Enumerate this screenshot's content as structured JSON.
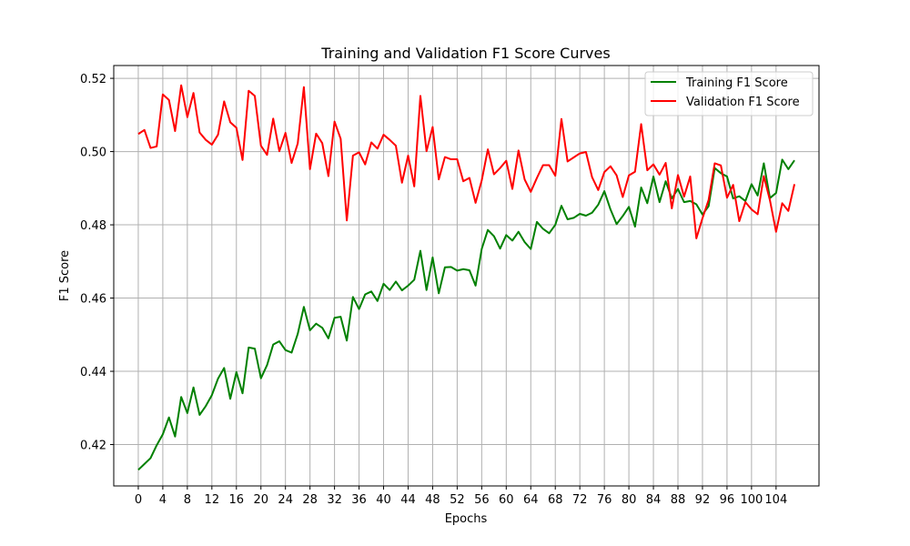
{
  "chart_data": {
    "type": "line",
    "title": "Training and Validation F1 Score Curves",
    "xlabel": "Epochs",
    "ylabel": "F1 Score",
    "xlim": [
      -4,
      111
    ],
    "ylim": [
      0.4087,
      0.5235
    ],
    "xticks": [
      0,
      4,
      8,
      12,
      16,
      20,
      24,
      28,
      32,
      36,
      40,
      44,
      48,
      52,
      56,
      60,
      64,
      68,
      72,
      76,
      80,
      84,
      88,
      92,
      96,
      100,
      104
    ],
    "yticks": [
      0.42,
      0.44,
      0.46,
      0.48,
      0.5,
      0.52
    ],
    "grid": true,
    "legend": "top-right",
    "x": [
      0,
      1,
      2,
      3,
      4,
      5,
      6,
      7,
      8,
      9,
      10,
      11,
      12,
      13,
      14,
      15,
      16,
      17,
      18,
      19,
      20,
      21,
      22,
      23,
      24,
      25,
      26,
      27,
      28,
      29,
      30,
      31,
      32,
      33,
      34,
      35,
      36,
      37,
      38,
      39,
      40,
      41,
      42,
      43,
      44,
      45,
      46,
      47,
      48,
      49,
      50,
      51,
      52,
      53,
      54,
      55,
      56,
      57,
      58,
      59,
      60,
      61,
      62,
      63,
      64,
      65,
      66,
      67,
      68,
      69,
      70,
      71,
      72,
      73,
      74,
      75,
      76,
      77,
      78,
      79,
      80,
      81,
      82,
      83,
      84,
      85,
      86,
      87,
      88,
      89,
      90,
      91,
      92,
      93,
      94,
      95,
      96,
      97,
      98,
      99,
      100,
      101,
      102,
      103,
      104,
      105,
      106,
      107
    ],
    "series": [
      {
        "name": "Training F1 Score",
        "color": "#008000",
        "values": [
          0.4131,
          0.4147,
          0.4163,
          0.4198,
          0.4228,
          0.4274,
          0.4222,
          0.433,
          0.4286,
          0.4356,
          0.4281,
          0.4305,
          0.4335,
          0.438,
          0.4409,
          0.4325,
          0.4398,
          0.434,
          0.4465,
          0.4462,
          0.4381,
          0.4417,
          0.4473,
          0.4482,
          0.4458,
          0.4451,
          0.4502,
          0.4576,
          0.4512,
          0.453,
          0.4519,
          0.449,
          0.4546,
          0.4549,
          0.4484,
          0.4603,
          0.457,
          0.461,
          0.4618,
          0.4592,
          0.4639,
          0.4622,
          0.4645,
          0.4621,
          0.4634,
          0.465,
          0.4729,
          0.4622,
          0.4711,
          0.4613,
          0.4684,
          0.4685,
          0.4675,
          0.4679,
          0.4676,
          0.4634,
          0.4734,
          0.4786,
          0.4769,
          0.4735,
          0.4772,
          0.4757,
          0.4781,
          0.4753,
          0.4734,
          0.4808,
          0.4789,
          0.4777,
          0.48,
          0.4852,
          0.4815,
          0.4819,
          0.483,
          0.4825,
          0.4833,
          0.4855,
          0.4892,
          0.4842,
          0.4802,
          0.4824,
          0.4849,
          0.4795,
          0.4902,
          0.4859,
          0.4932,
          0.4862,
          0.4919,
          0.4872,
          0.4898,
          0.4862,
          0.4865,
          0.4856,
          0.4828,
          0.4851,
          0.4955,
          0.4941,
          0.4932,
          0.4872,
          0.4878,
          0.4865,
          0.4911,
          0.488,
          0.4968,
          0.4873,
          0.4887,
          0.4978,
          0.4952,
          0.4976
        ]
      },
      {
        "name": "Validation F1 Score",
        "color": "#ff0000",
        "values": [
          0.5048,
          0.5059,
          0.501,
          0.5014,
          0.5156,
          0.5141,
          0.5056,
          0.5181,
          0.5094,
          0.516,
          0.5052,
          0.5032,
          0.5019,
          0.5046,
          0.5137,
          0.508,
          0.5065,
          0.4977,
          0.5166,
          0.5152,
          0.5016,
          0.4991,
          0.509,
          0.5001,
          0.5051,
          0.4969,
          0.5022,
          0.5176,
          0.4952,
          0.5049,
          0.5023,
          0.4933,
          0.5082,
          0.5035,
          0.4812,
          0.4989,
          0.4998,
          0.4965,
          0.5025,
          0.5008,
          0.5046,
          0.5032,
          0.5016,
          0.4915,
          0.4989,
          0.4905,
          0.5152,
          0.5001,
          0.5067,
          0.4924,
          0.4985,
          0.4979,
          0.4979,
          0.4919,
          0.4928,
          0.486,
          0.4921,
          0.5006,
          0.4938,
          0.4955,
          0.4975,
          0.4898,
          0.5003,
          0.4924,
          0.489,
          0.4928,
          0.4963,
          0.4963,
          0.4934,
          0.5089,
          0.4973,
          0.4984,
          0.4995,
          0.4999,
          0.493,
          0.4895,
          0.4944,
          0.496,
          0.4935,
          0.4876,
          0.4935,
          0.4945,
          0.5075,
          0.4949,
          0.4965,
          0.4937,
          0.4969,
          0.4845,
          0.4936,
          0.4877,
          0.4932,
          0.4763,
          0.4818,
          0.4868,
          0.4968,
          0.4962,
          0.4874,
          0.4909,
          0.481,
          0.4862,
          0.4842,
          0.4829,
          0.4933,
          0.4867,
          0.4781,
          0.4859,
          0.4838,
          0.4911
        ]
      }
    ]
  }
}
